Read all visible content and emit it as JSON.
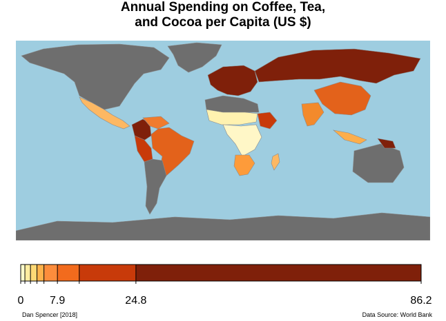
{
  "title_line1": "Annual Spending on Coffee, Tea,",
  "title_line2": "and Cocoa per Capita (US $)",
  "credit_left": "Dan Spencer [2018]",
  "credit_right": "Data Source: World Bank",
  "colors": {
    "ocean": "#9ecde0",
    "no_data": "#6e6e6e",
    "border": "#8a8a8a"
  },
  "legend": {
    "min": 0,
    "max": 86.2,
    "breaks": [
      0,
      0.9,
      2.1,
      3.5,
      5.0,
      7.9,
      12.6,
      24.8,
      86.2
    ],
    "colors": [
      "#ffffcc",
      "#ffeda0",
      "#fed976",
      "#feb24c",
      "#fd8d3c",
      "#f26b1d",
      "#c83a0a",
      "#7f200a"
    ],
    "tick_labels": [
      {
        "value": 0,
        "label": "0"
      },
      {
        "value": 7.9,
        "label": "7.9"
      },
      {
        "value": 24.8,
        "label": "24.8"
      },
      {
        "value": 86.2,
        "label": "86.2"
      }
    ]
  },
  "regions": [
    {
      "name": "canada-usa",
      "fill": "#6e6e6e"
    },
    {
      "name": "greenland",
      "fill": "#6e6e6e"
    },
    {
      "name": "mexico",
      "fill": "#fdb863"
    },
    {
      "name": "colombia",
      "fill": "#7f200a"
    },
    {
      "name": "venezuela",
      "fill": "#f07b2d"
    },
    {
      "name": "brazil",
      "fill": "#e3621b"
    },
    {
      "name": "peru",
      "fill": "#c83a0a"
    },
    {
      "name": "argentina",
      "fill": "#6e6e6e"
    },
    {
      "name": "europe",
      "fill": "#7f200a"
    },
    {
      "name": "russia",
      "fill": "#7f200a"
    },
    {
      "name": "china",
      "fill": "#e3621b"
    },
    {
      "name": "india",
      "fill": "#f38a2c"
    },
    {
      "name": "north-africa",
      "fill": "#6e6e6e"
    },
    {
      "name": "sahel",
      "fill": "#fff2b0"
    },
    {
      "name": "central-africa",
      "fill": "#fff7c7"
    },
    {
      "name": "ethiopia",
      "fill": "#c83a0a"
    },
    {
      "name": "south-africa",
      "fill": "#fd9b3a"
    },
    {
      "name": "madagascar",
      "fill": "#fdb863"
    },
    {
      "name": "australia",
      "fill": "#6e6e6e"
    },
    {
      "name": "indonesia",
      "fill": "#fdae4b"
    },
    {
      "name": "papua",
      "fill": "#7f200a"
    },
    {
      "name": "antarctica",
      "fill": "#6e6e6e"
    }
  ]
}
